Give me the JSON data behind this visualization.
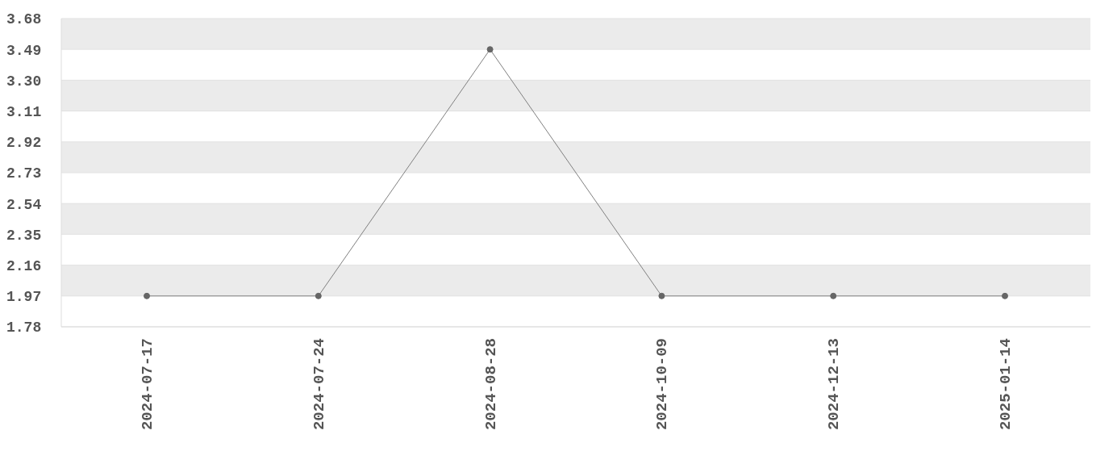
{
  "chart_data": {
    "type": "line",
    "categories": [
      "2024-07-17",
      "2024-07-24",
      "2024-08-28",
      "2024-10-09",
      "2024-12-13",
      "2025-01-14"
    ],
    "series": [
      {
        "color": "#808080",
        "values": [
          1.97,
          1.97,
          3.49,
          1.97,
          1.97,
          1.97
        ]
      }
    ],
    "ylim": [
      1.78,
      3.68
    ],
    "yticks": [
      1.78,
      1.97,
      2.16,
      2.35,
      2.54,
      2.73,
      2.92,
      3.11,
      {
        "value": 3.3,
        "label": "3.30"
      },
      3.49,
      3.68
    ],
    "grid": "y",
    "marker": "circle",
    "line_style": "solid",
    "legend": false
  }
}
